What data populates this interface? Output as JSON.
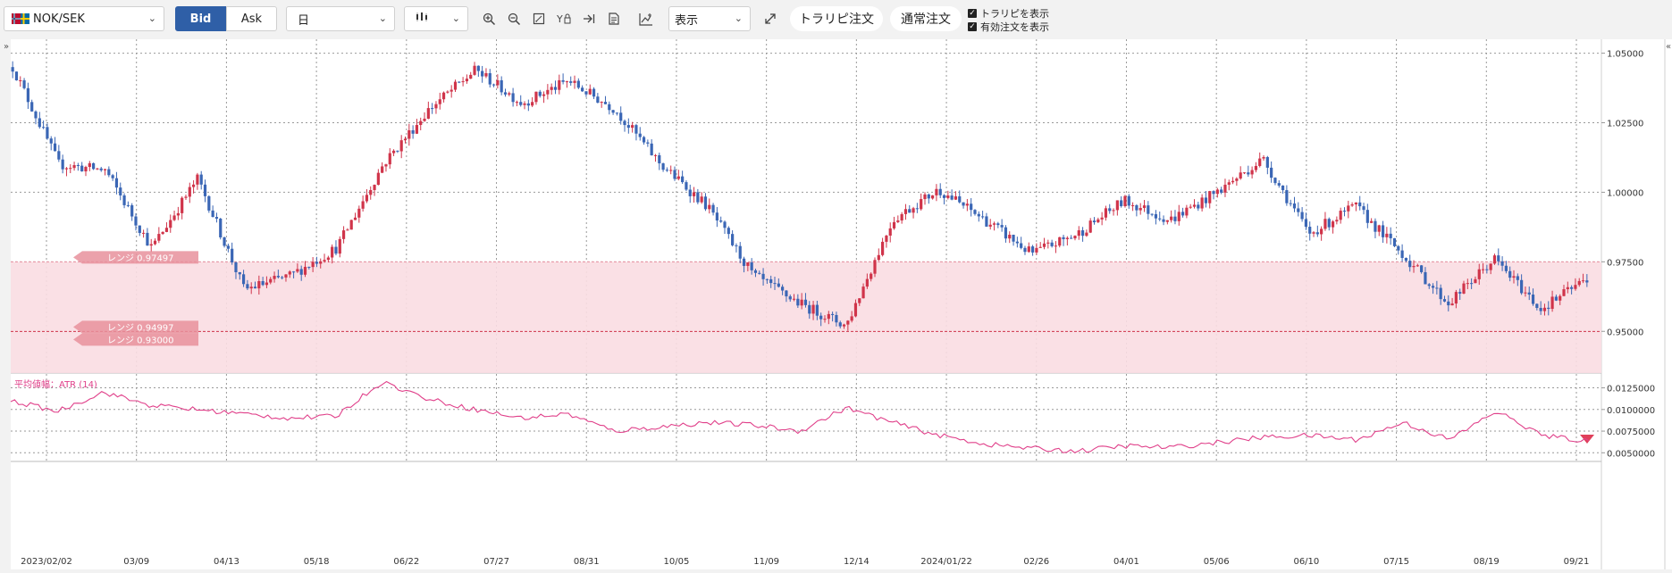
{
  "toolbar": {
    "pair": "NOK/SEK",
    "bid_label": "Bid",
    "ask_label": "Ask",
    "period": "日",
    "display": "表示",
    "tri_order": "トラリピ注文",
    "normal_order": "通常注文",
    "show_tri": "トラリピを表示",
    "show_orders": "有効注文を表示"
  },
  "colors": {
    "up": "#d0344a",
    "down": "#3a66b5",
    "range_fill": "#f9dde2",
    "atr_line": "#e0408a"
  },
  "ranges": [
    {
      "label": "レンジ 0.97497",
      "value": 0.97497
    },
    {
      "label": "レンジ 0.94997",
      "value": 0.94997
    },
    {
      "label": "レンジ 0.93000",
      "value": 0.93
    }
  ],
  "indicator": {
    "label": "平均値幅：ATR (14)"
  },
  "chart_data": [
    {
      "type": "line",
      "kind": "candlestick",
      "title": "",
      "ylim": [
        0.935,
        1.055
      ],
      "y_ticks": [
        "1.05000",
        "1.02500",
        "1.00000",
        "0.97500",
        "0.95000"
      ],
      "x_ticks": [
        "2023/02/02",
        "03/09",
        "04/13",
        "05/18",
        "06/22",
        "07/27",
        "08/31",
        "10/05",
        "11/09",
        "12/14",
        "2024/01/22",
        "02/26",
        "04/01",
        "05/06",
        "06/10",
        "07/15",
        "08/19",
        "09/21"
      ],
      "x": [
        "2023/02/02",
        "02/20",
        "03/09",
        "03/26",
        "04/13",
        "04/30",
        "05/18",
        "06/04",
        "06/22",
        "07/09",
        "07/27",
        "08/13",
        "08/31",
        "09/17",
        "10/05",
        "10/22",
        "11/09",
        "11/26",
        "12/14",
        "01/03",
        "01/22",
        "02/08",
        "02/26",
        "03/14",
        "04/01",
        "04/18",
        "05/06",
        "05/23",
        "06/10",
        "06/27",
        "07/15",
        "08/01",
        "08/19",
        "09/04",
        "09/21"
      ],
      "series": [
        {
          "values": [
            1.045,
            1.01,
            1.008,
            0.98,
            1.005,
            0.965,
            0.97,
            0.98,
            1.01,
            1.03,
            1.044,
            1.032,
            1.04,
            1.03,
            1.01,
            0.995,
            0.97,
            0.96,
            0.952,
            0.99,
            1.001,
            0.99,
            0.978,
            0.985,
            0.997,
            0.99,
            1.0,
            1.012,
            0.985,
            0.995,
            0.978,
            0.96,
            0.976,
            0.958,
            0.969
          ]
        }
      ]
    },
    {
      "type": "line",
      "title": "",
      "ylim": [
        0.004,
        0.014
      ],
      "y_ticks": [
        "0.0125000",
        "0.0100000",
        "0.0075000",
        "0.0050000"
      ],
      "series": [
        {
          "values": [
            0.011,
            0.0098,
            0.012,
            0.0105,
            0.01,
            0.0095,
            0.009,
            0.0092,
            0.0132,
            0.0112,
            0.01,
            0.009,
            0.0095,
            0.0075,
            0.008,
            0.0085,
            0.0082,
            0.0075,
            0.0102,
            0.0085,
            0.007,
            0.006,
            0.0055,
            0.0052,
            0.0058,
            0.0056,
            0.0062,
            0.0068,
            0.007,
            0.0065,
            0.0085,
            0.0065,
            0.0098,
            0.007,
            0.0063
          ]
        }
      ]
    }
  ]
}
